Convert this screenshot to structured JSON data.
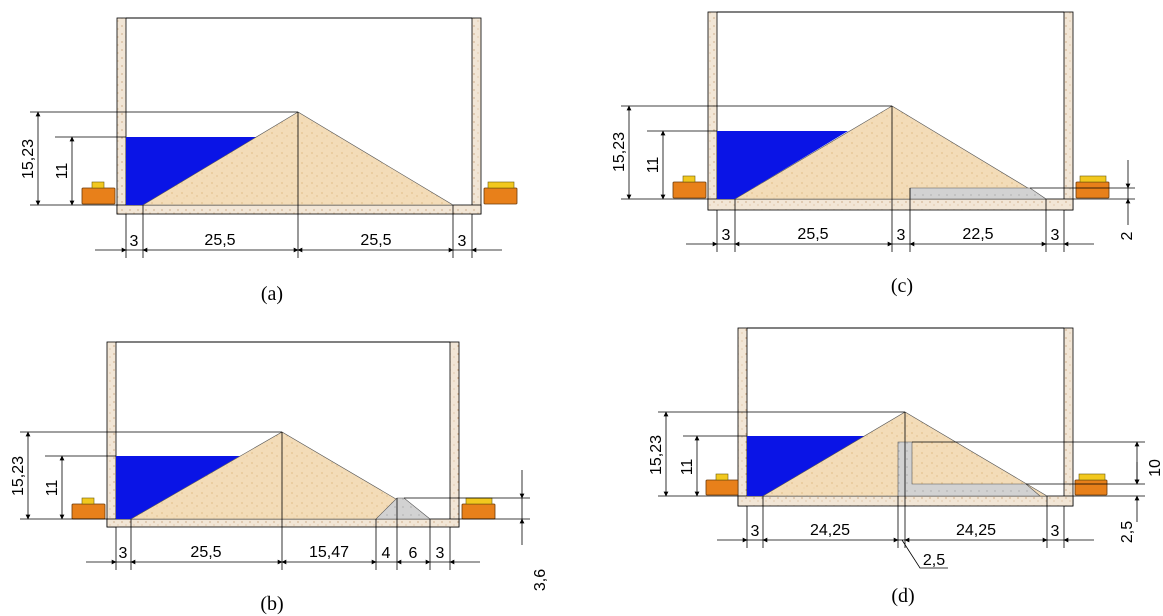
{
  "colors": {
    "water": "#0a14e6",
    "sand": "#f3dcb8",
    "filter": "#cfcfcf",
    "tank_wall": "#f2e6d6",
    "device_orange": "#e8801a",
    "device_top": "#f2c81e"
  },
  "icons": {
    "device": "orange-box-device"
  },
  "panels": {
    "a": {
      "caption": "(a)",
      "h_total": "15,23",
      "h_water": "11",
      "dims": [
        "3",
        "25,5",
        "25,5",
        "3"
      ]
    },
    "b": {
      "caption": "(b)",
      "h_total": "15,23",
      "h_water": "11",
      "dims": [
        "3",
        "25,5",
        "15,47",
        "4",
        "6",
        "3"
      ],
      "v_dim": "3,6"
    },
    "c": {
      "caption": "(c)",
      "h_total": "15,23",
      "h_water": "11",
      "dims": [
        "3",
        "25,5",
        "3",
        "22,5",
        "3"
      ],
      "v_dim": "2"
    },
    "d": {
      "caption": "(d)",
      "h_total": "15,23",
      "h_water": "11",
      "dims": [
        "3",
        "24,25",
        "24,25",
        "3"
      ],
      "v_dim_top": "10",
      "v_dim_bottom": "2,5",
      "leader_label": "2,5"
    }
  }
}
